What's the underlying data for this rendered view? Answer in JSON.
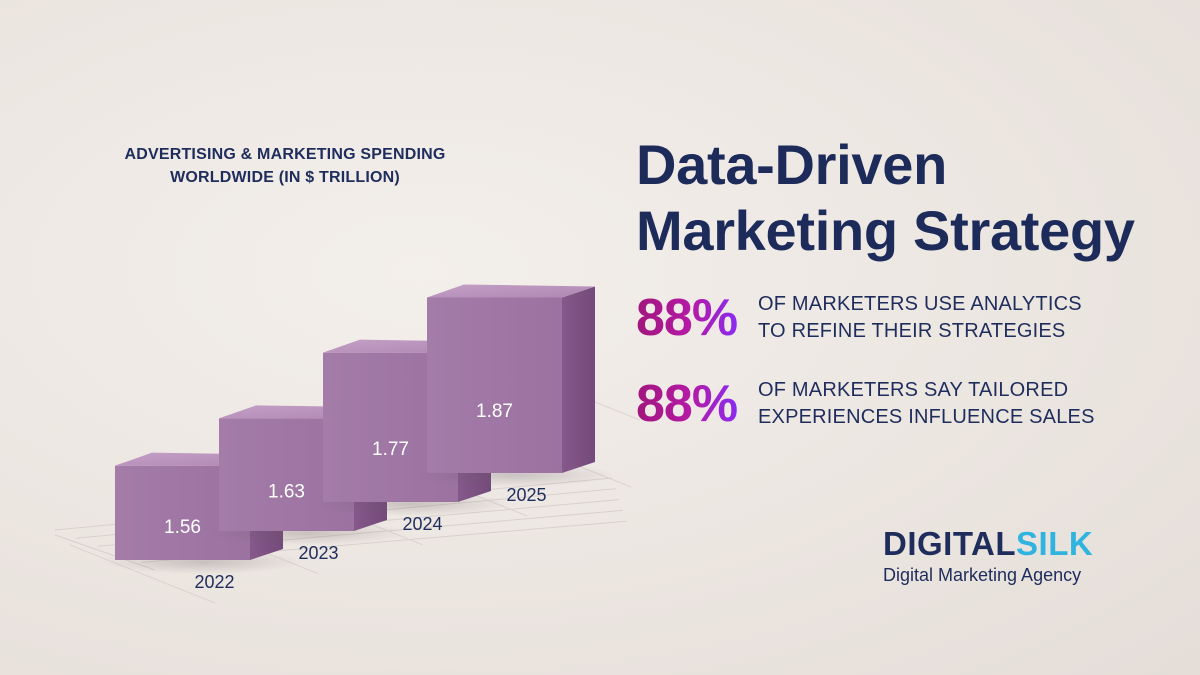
{
  "chart_data": {
    "type": "bar",
    "title_lines": [
      "ADVERTISING & MARKETING SPENDING",
      "WORLDWIDE (IN $ TRILLION)"
    ],
    "categories": [
      "2022",
      "2023",
      "2024",
      "2025"
    ],
    "values": [
      1.56,
      1.63,
      1.77,
      1.87
    ],
    "value_labels": [
      "1.56",
      "1.63",
      "1.77",
      "1.87"
    ],
    "ylabel": "$ Trillion",
    "ylim": [
      1.2,
      1.9
    ]
  },
  "headline": {
    "line1": "Data-Driven",
    "line2": "Marketing Strategy"
  },
  "stats": [
    {
      "percent": "88%",
      "line1": "OF MARKETERS USE ANALYTICS",
      "line2": "TO REFINE THEIR STRATEGIES"
    },
    {
      "percent": "88%",
      "line1": "OF MARKETERS SAY TAILORED",
      "line2": "EXPERIENCES INFLUENCE SALES"
    }
  ],
  "logo": {
    "word_a": "DIGITAL",
    "word_b": "SILK",
    "tagline": "Digital Marketing Agency"
  },
  "colors": {
    "navy": "#1f2d5c",
    "bar_front": "#a27aa6",
    "bar_side": "#7f5586",
    "bar_top": "#bb94bd",
    "accent_magenta": "#a1167d",
    "accent_violet": "#8a2cf0",
    "logo_blue": "#2fb4e0"
  }
}
